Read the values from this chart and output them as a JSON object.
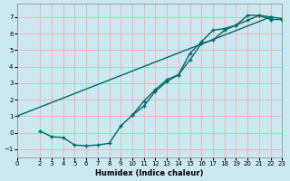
{
  "xlabel": "Humidex (Indice chaleur)",
  "bg_color": "#cce8f0",
  "grid_color": "#e8b8b8",
  "line_color": "#006868",
  "xlim": [
    0,
    23
  ],
  "ylim": [
    -1.5,
    7.8
  ],
  "yticks": [
    -1,
    0,
    1,
    2,
    3,
    4,
    5,
    6,
    7
  ],
  "xticks": [
    0,
    2,
    3,
    4,
    5,
    6,
    7,
    8,
    9,
    10,
    11,
    12,
    13,
    14,
    15,
    16,
    17,
    18,
    19,
    20,
    21,
    22,
    23
  ],
  "line1_x": [
    0,
    22
  ],
  "line1_y": [
    1.0,
    7.0
  ],
  "line2_x": [
    2,
    3,
    4,
    5,
    6,
    7,
    8,
    9,
    10,
    11,
    12,
    13,
    14,
    15,
    16,
    17,
    18,
    19,
    20,
    21,
    22,
    23
  ],
  "line2_y": [
    0.1,
    -0.25,
    -0.3,
    -0.75,
    -0.8,
    -0.75,
    -0.65,
    0.4,
    1.05,
    1.6,
    2.5,
    3.1,
    3.5,
    4.8,
    5.5,
    6.2,
    6.3,
    6.5,
    7.1,
    7.1,
    7.0,
    6.9
  ],
  "line3_x": [
    10,
    11,
    12,
    13,
    14,
    15,
    16,
    17,
    18,
    19,
    20,
    21,
    22,
    23
  ],
  "line3_y": [
    1.05,
    1.9,
    2.6,
    3.2,
    3.5,
    4.4,
    5.4,
    5.6,
    6.2,
    6.5,
    6.8,
    7.1,
    6.85,
    6.85
  ]
}
